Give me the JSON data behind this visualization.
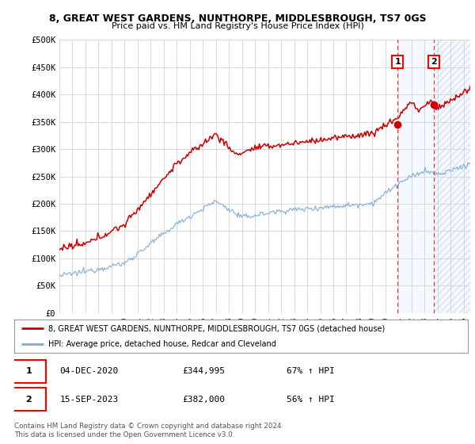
{
  "title1": "8, GREAT WEST GARDENS, NUNTHORPE, MIDDLESBROUGH, TS7 0GS",
  "title2": "Price paid vs. HM Land Registry's House Price Index (HPI)",
  "ylabel_ticks": [
    "£0",
    "£50K",
    "£100K",
    "£150K",
    "£200K",
    "£250K",
    "£300K",
    "£350K",
    "£400K",
    "£450K",
    "£500K"
  ],
  "ytick_values": [
    0,
    50000,
    100000,
    150000,
    200000,
    250000,
    300000,
    350000,
    400000,
    450000,
    500000
  ],
  "legend_line1": "8, GREAT WEST GARDENS, NUNTHORPE, MIDDLESBROUGH, TS7 0GS (detached house)",
  "legend_line2": "HPI: Average price, detached house, Redcar and Cleveland",
  "sale1_date": "04-DEC-2020",
  "sale1_price": "£344,995",
  "sale1_hpi": "67% ↑ HPI",
  "sale1_value": 344995,
  "sale1_year": 2020.92,
  "sale2_date": "15-SEP-2023",
  "sale2_price": "£382,000",
  "sale2_hpi": "56% ↑ HPI",
  "sale2_value": 382000,
  "sale2_year": 2023.71,
  "hpi_color": "#7aaddb",
  "price_color": "#cc0000",
  "shaded_color": "#ddeeff",
  "footnote": "Contains HM Land Registry data © Crown copyright and database right 2024.\nThis data is licensed under the Open Government Licence v3.0.",
  "background_color": "#ffffff",
  "grid_color": "#cccccc",
  "xmin": 1995,
  "xmax": 2026.5
}
